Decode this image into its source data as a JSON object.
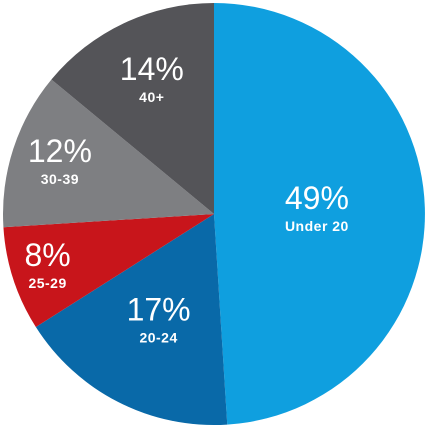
{
  "chart_data": {
    "type": "pie",
    "title": "",
    "categories": [
      "Under 20",
      "20-24",
      "25-29",
      "30-39",
      "40+"
    ],
    "values": [
      49,
      17,
      8,
      12,
      14
    ],
    "value_labels": [
      "49%",
      "17%",
      "8%",
      "12%",
      "14%"
    ],
    "colors": [
      "#0f9fdf",
      "#0969a8",
      "#c8151b",
      "#7e7f82",
      "#545458"
    ],
    "legend": "none",
    "start_angle_deg": 0,
    "direction": "clockwise"
  }
}
